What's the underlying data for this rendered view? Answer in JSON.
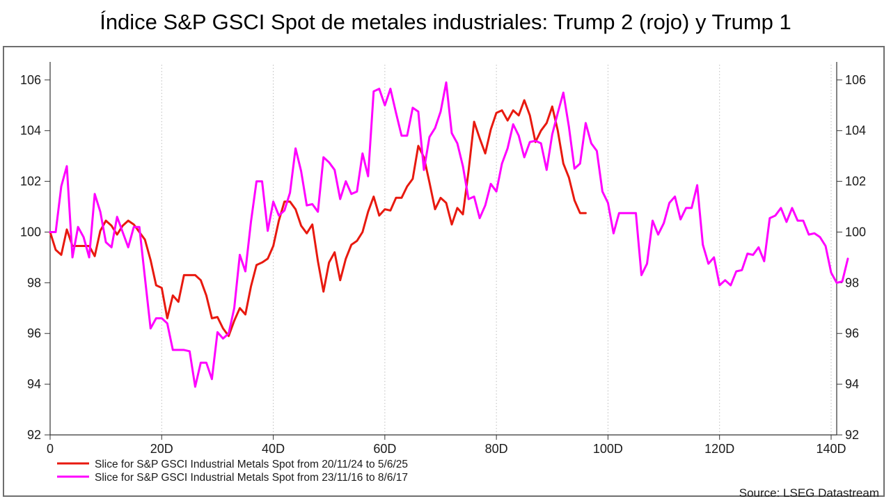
{
  "title": "Índice S&P GSCI Spot de metales industriales: Trump 2 (rojo) y Trump 1",
  "source": "Source: LSEG Datastream",
  "chart_data": {
    "type": "line",
    "title": "Índice S&P GSCI Spot de metales industriales: Trump 2 (rojo) y Trump 1",
    "xlim": [
      0,
      141
    ],
    "ylim": [
      92,
      106.6
    ],
    "x_ticks": [
      {
        "value": 0,
        "label": "0"
      },
      {
        "value": 20,
        "label": "20D"
      },
      {
        "value": 40,
        "label": "40D"
      },
      {
        "value": 60,
        "label": "60D"
      },
      {
        "value": 80,
        "label": "80D"
      },
      {
        "value": 100,
        "label": "100D"
      },
      {
        "value": 120,
        "label": "120D"
      },
      {
        "value": 140,
        "label": "140D"
      }
    ],
    "y_ticks": [
      92,
      94,
      96,
      98,
      100,
      102,
      104,
      106
    ],
    "y_tick_labels": [
      "92",
      "94",
      "96",
      "98",
      "100",
      "102",
      "104",
      "106"
    ],
    "grid": "vertical dotted",
    "legend_position": "bottom-left",
    "series": [
      {
        "name": "Slice for S&P GSCI Industrial Metals Spot from 20/11/24 to 5/6/25",
        "color": "#e8190f",
        "values": [
          100.0,
          99.3,
          99.1,
          100.1,
          99.45,
          99.45,
          99.45,
          99.45,
          99.05,
          100.05,
          100.45,
          100.25,
          99.9,
          100.25,
          100.45,
          100.3,
          100.0,
          99.7,
          98.9,
          97.9,
          97.8,
          96.6,
          97.5,
          97.25,
          98.3,
          98.3,
          98.3,
          98.1,
          97.5,
          96.6,
          96.65,
          96.2,
          95.9,
          96.5,
          97.0,
          96.75,
          97.85,
          98.7,
          98.8,
          98.95,
          99.45,
          100.45,
          101.2,
          101.2,
          100.9,
          100.25,
          99.95,
          100.3,
          98.85,
          97.65,
          98.8,
          99.2,
          98.1,
          98.95,
          99.5,
          99.65,
          100.0,
          100.8,
          101.4,
          100.65,
          100.9,
          100.85,
          101.35,
          101.35,
          101.8,
          102.1,
          103.4,
          102.95,
          101.95,
          100.9,
          101.35,
          101.15,
          100.3,
          100.95,
          100.7,
          102.4,
          104.35,
          103.7,
          103.1,
          104.05,
          104.7,
          104.8,
          104.4,
          104.8,
          104.6,
          105.2,
          104.6,
          103.55,
          104.0,
          104.3,
          104.95,
          104.0,
          102.7,
          102.15,
          101.25,
          100.75,
          100.75
        ]
      },
      {
        "name": "Slice for S&P GSCI Industrial Metals Spot from 23/11/16 to 8/6/17",
        "color": "#ff00ff",
        "values": [
          100.0,
          100.0,
          101.8,
          102.6,
          99.0,
          100.2,
          99.8,
          99.0,
          101.5,
          100.8,
          99.6,
          99.4,
          100.6,
          100.0,
          99.4,
          100.2,
          100.2,
          98.2,
          96.2,
          96.6,
          96.6,
          96.4,
          95.35,
          95.35,
          95.35,
          95.3,
          93.9,
          94.85,
          94.85,
          94.2,
          96.05,
          95.8,
          96.0,
          97.0,
          99.1,
          98.45,
          100.4,
          102.0,
          102.0,
          100.05,
          101.2,
          100.65,
          100.85,
          101.55,
          103.3,
          102.4,
          101.05,
          101.1,
          100.8,
          102.95,
          102.75,
          102.45,
          101.3,
          102.0,
          101.5,
          101.6,
          103.1,
          102.2,
          105.55,
          105.65,
          105.0,
          105.65,
          104.7,
          103.8,
          103.8,
          104.9,
          104.75,
          102.45,
          103.75,
          104.1,
          104.75,
          105.9,
          103.9,
          103.5,
          102.6,
          101.3,
          101.4,
          100.55,
          101.05,
          101.9,
          101.6,
          102.7,
          103.3,
          104.25,
          103.8,
          102.95,
          103.55,
          103.6,
          103.5,
          102.45,
          103.85,
          104.7,
          105.5,
          104.15,
          102.5,
          102.7,
          104.3,
          103.5,
          103.2,
          101.6,
          101.15,
          99.95,
          100.75,
          100.75,
          100.75,
          100.75,
          98.3,
          98.75,
          100.45,
          99.9,
          100.35,
          101.15,
          101.4,
          100.5,
          100.95,
          100.95,
          101.85,
          99.5,
          98.75,
          99.0,
          97.9,
          98.1,
          97.9,
          98.45,
          98.5,
          99.15,
          99.1,
          99.4,
          98.85,
          100.55,
          100.65,
          100.95,
          100.4,
          100.95,
          100.45,
          100.45,
          99.9,
          99.95,
          99.8,
          99.45,
          98.4,
          98.0,
          98.05,
          98.95
        ]
      }
    ]
  }
}
